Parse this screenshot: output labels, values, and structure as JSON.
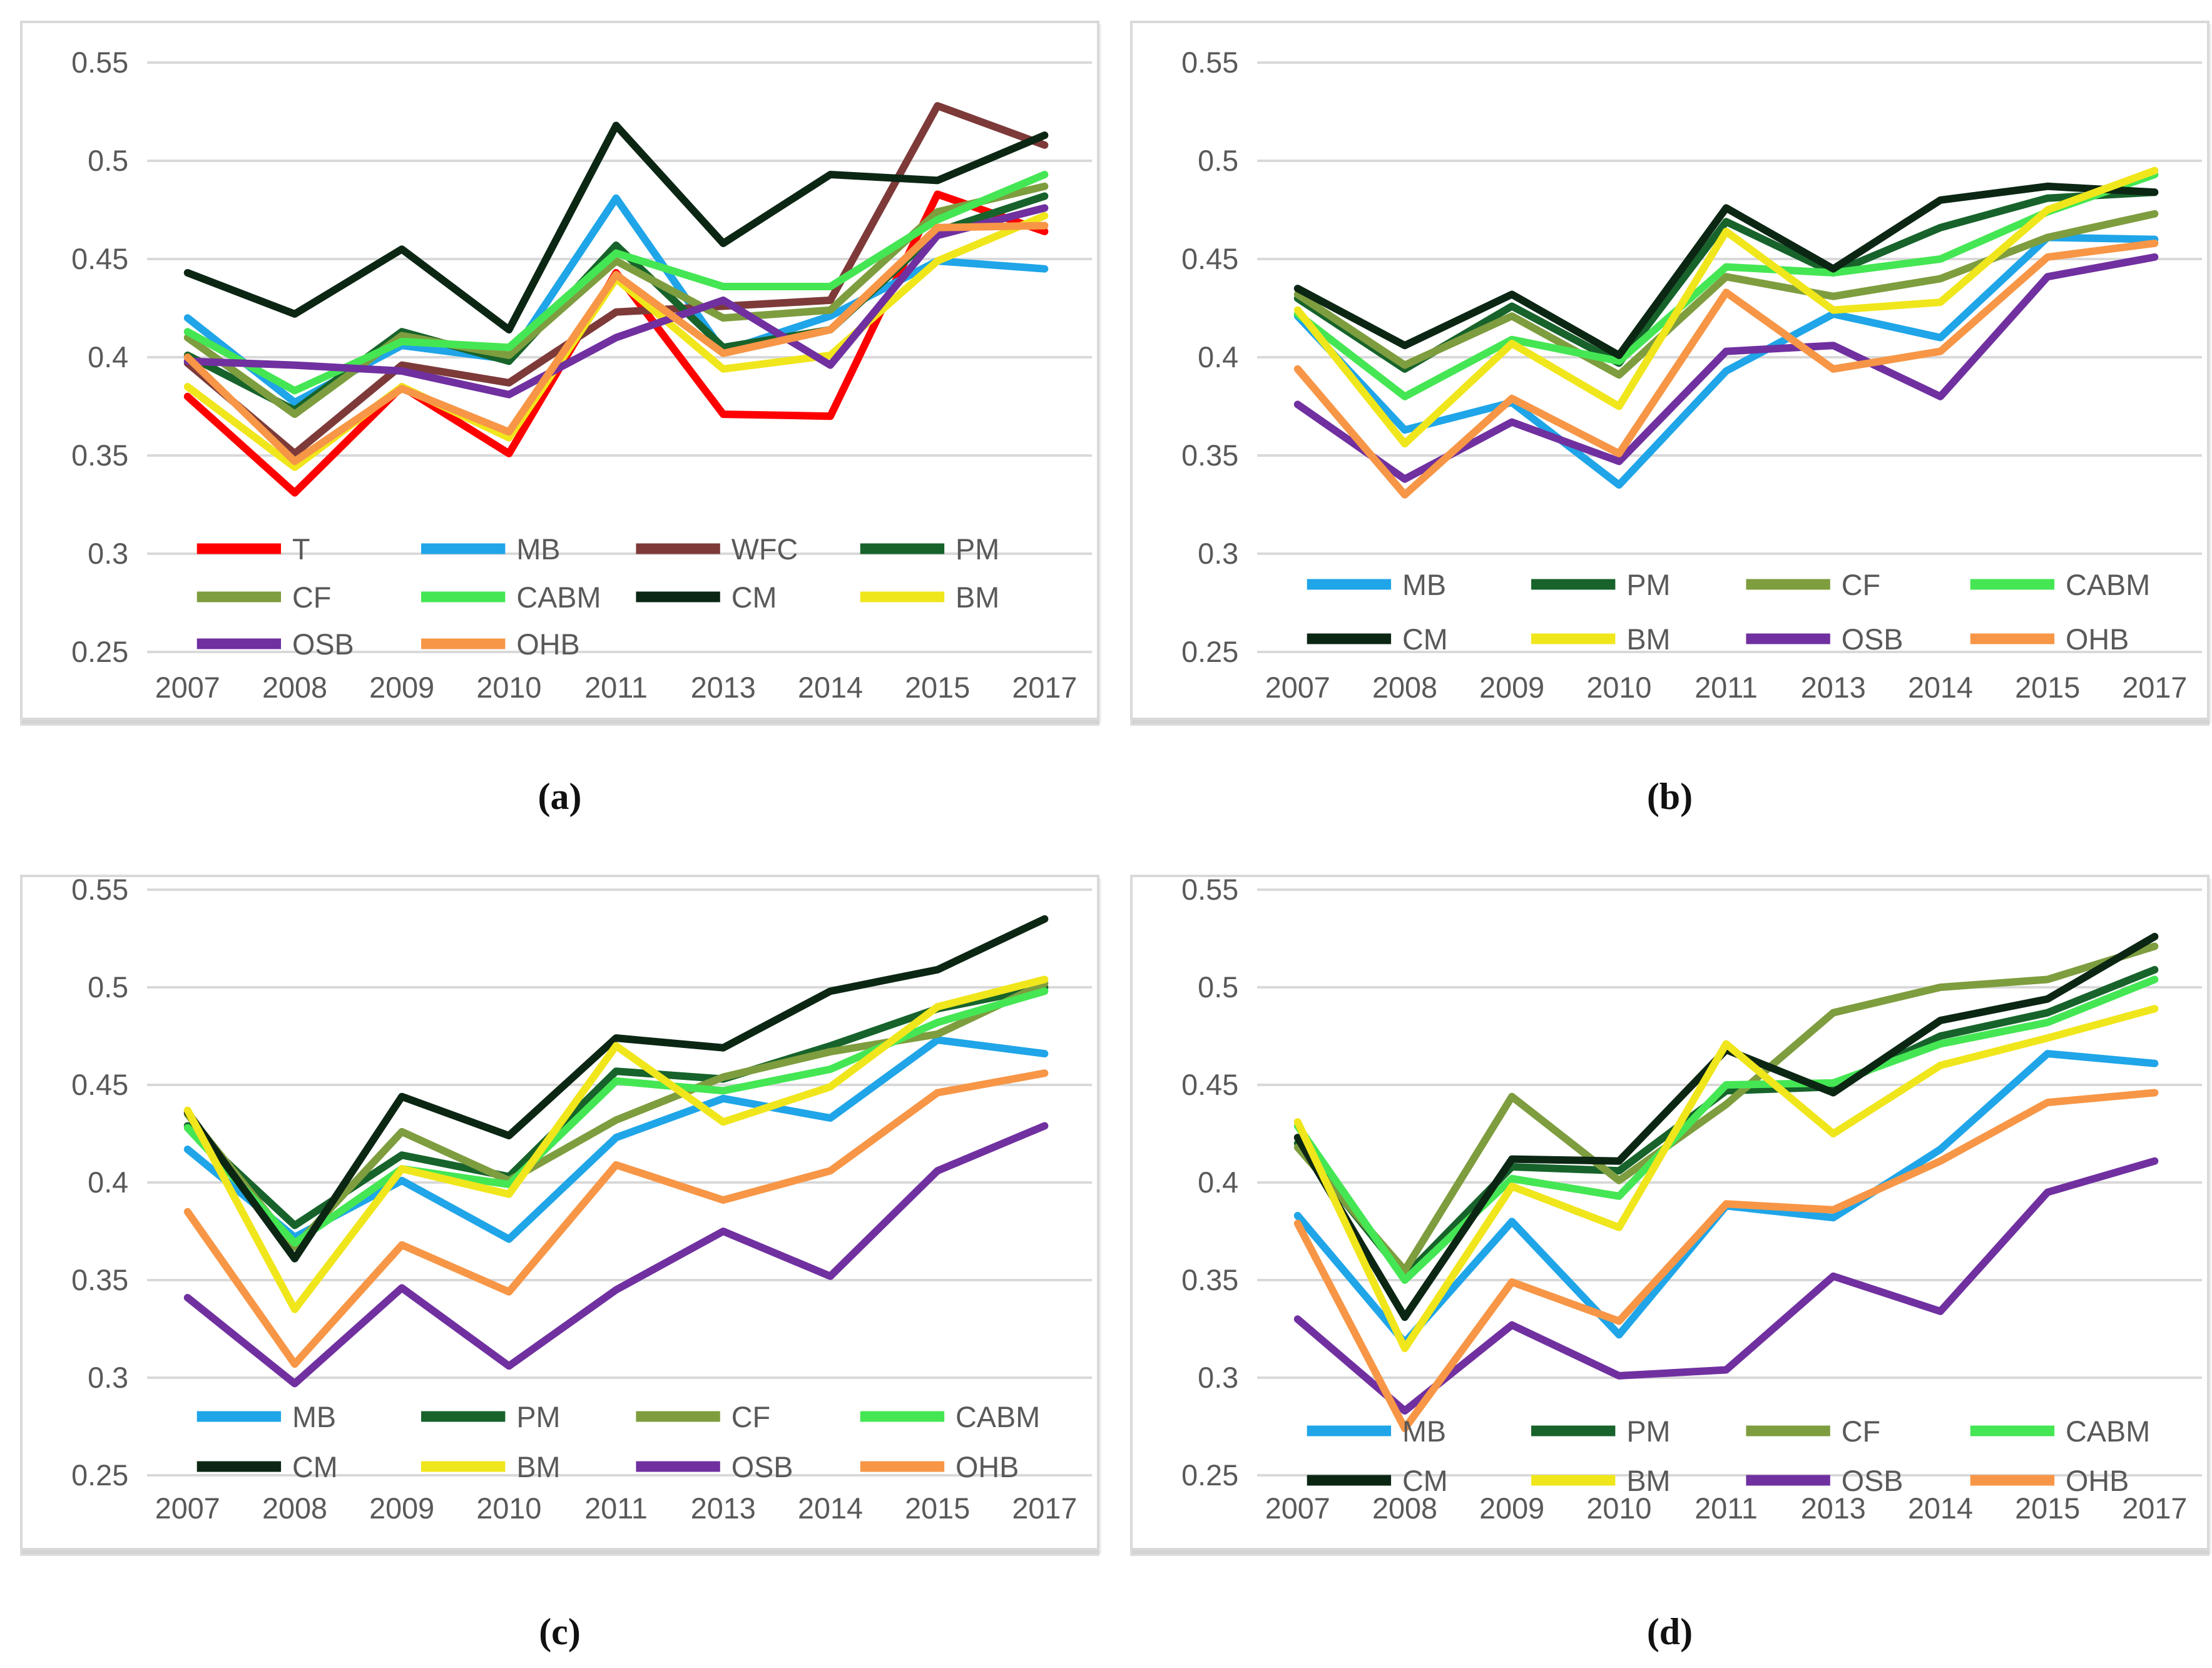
{
  "figure": {
    "background": "#ffffff",
    "grid_color": "#d9d9d9",
    "tick_color": "#595959",
    "captions": [
      "(a)",
      "(b)",
      "(c)",
      "(d)"
    ]
  },
  "chart_data": [
    {
      "type": "line",
      "caption": "(a)",
      "x": [
        "2007",
        "2008",
        "2009",
        "2010",
        "2011",
        "2013",
        "2014",
        "2015",
        "2017"
      ],
      "ylim": [
        0.25,
        0.55
      ],
      "yticks": [
        "0.55",
        "0.5",
        "0.45",
        "0.4",
        "0.35",
        "0.3",
        "0.25"
      ],
      "grid": true,
      "legend_position": "bottom-inside",
      "legend_rows_y": [
        840,
        917,
        992
      ],
      "series": [
        {
          "name": "T",
          "color": "#fe0000",
          "values": [
            0.38,
            0.331,
            0.385,
            0.351,
            0.443,
            0.371,
            0.37,
            0.483,
            0.464
          ]
        },
        {
          "name": "MB",
          "color": "#1fa5e8",
          "values": [
            0.42,
            0.377,
            0.406,
            0.399,
            0.481,
            0.403,
            0.421,
            0.449,
            0.445
          ]
        },
        {
          "name": "WFC",
          "color": "#7d3a39",
          "values": [
            0.397,
            0.351,
            0.396,
            0.387,
            0.423,
            0.426,
            0.429,
            0.528,
            0.508
          ]
        },
        {
          "name": "PM",
          "color": "#17632b",
          "values": [
            0.401,
            0.373,
            0.413,
            0.398,
            0.457,
            0.405,
            0.414,
            0.464,
            0.482
          ]
        },
        {
          "name": "CF",
          "color": "#7e9d3f",
          "values": [
            0.41,
            0.371,
            0.411,
            0.401,
            0.449,
            0.42,
            0.424,
            0.474,
            0.487
          ]
        },
        {
          "name": "CABM",
          "color": "#45e654",
          "values": [
            0.413,
            0.383,
            0.408,
            0.405,
            0.453,
            0.436,
            0.436,
            0.47,
            0.493
          ]
        },
        {
          "name": "CM",
          "color": "#0c2614",
          "values": [
            0.443,
            0.422,
            0.455,
            0.414,
            0.518,
            0.458,
            0.493,
            0.49,
            0.513
          ]
        },
        {
          "name": "BM",
          "color": "#f0e61c",
          "values": [
            0.385,
            0.344,
            0.385,
            0.359,
            0.44,
            0.394,
            0.401,
            0.449,
            0.472
          ]
        },
        {
          "name": "OSB",
          "color": "#7030a0",
          "values": [
            0.398,
            0.396,
            0.393,
            0.381,
            0.41,
            0.429,
            0.396,
            0.462,
            0.476
          ]
        },
        {
          "name": "OHB",
          "color": "#f79646",
          "values": [
            0.4,
            0.347,
            0.384,
            0.362,
            0.442,
            0.402,
            0.414,
            0.466,
            0.467
          ]
        }
      ]
    },
    {
      "type": "line",
      "caption": "(b)",
      "x": [
        "2007",
        "2008",
        "2009",
        "2010",
        "2011",
        "2013",
        "2014",
        "2015",
        "2017"
      ],
      "ylim": [
        0.25,
        0.55
      ],
      "yticks": [
        "0.55",
        "0.5",
        "0.45",
        "0.4",
        "0.35",
        "0.3",
        "0.25"
      ],
      "grid": true,
      "legend_position": "bottom-inside",
      "legend_rows_y": [
        897,
        984
      ],
      "series": [
        {
          "name": "MB",
          "color": "#1fa5e8",
          "values": [
            0.421,
            0.363,
            0.377,
            0.335,
            0.393,
            0.422,
            0.41,
            0.461,
            0.46
          ]
        },
        {
          "name": "PM",
          "color": "#17632b",
          "values": [
            0.43,
            0.394,
            0.426,
            0.397,
            0.469,
            0.443,
            0.466,
            0.481,
            0.484
          ]
        },
        {
          "name": "CF",
          "color": "#7e9d3f",
          "values": [
            0.432,
            0.396,
            0.421,
            0.391,
            0.441,
            0.431,
            0.44,
            0.461,
            0.473
          ]
        },
        {
          "name": "CABM",
          "color": "#45e654",
          "values": [
            0.422,
            0.38,
            0.409,
            0.398,
            0.446,
            0.443,
            0.45,
            0.474,
            0.493
          ]
        },
        {
          "name": "CM",
          "color": "#0c2614",
          "values": [
            0.435,
            0.406,
            0.432,
            0.401,
            0.476,
            0.445,
            0.48,
            0.487,
            0.484
          ]
        },
        {
          "name": "BM",
          "color": "#f0e61c",
          "values": [
            0.424,
            0.356,
            0.407,
            0.375,
            0.464,
            0.424,
            0.428,
            0.475,
            0.495
          ]
        },
        {
          "name": "OSB",
          "color": "#7030a0",
          "values": [
            0.376,
            0.338,
            0.367,
            0.347,
            0.403,
            0.406,
            0.38,
            0.441,
            0.451
          ]
        },
        {
          "name": "OHB",
          "color": "#f79646",
          "values": [
            0.394,
            0.33,
            0.379,
            0.351,
            0.433,
            0.394,
            0.403,
            0.451,
            0.458
          ]
        }
      ]
    },
    {
      "type": "line",
      "caption": "(c)",
      "x": [
        "2007",
        "2008",
        "2009",
        "2010",
        "2011",
        "2013",
        "2014",
        "2015",
        "2017"
      ],
      "ylim": [
        0.25,
        0.55
      ],
      "yticks": [
        "0.55",
        "0.5",
        "0.45",
        "0.4",
        "0.35",
        "0.3",
        "0.25"
      ],
      "grid": true,
      "legend_position": "bottom-inside",
      "legend_rows_y": [
        862,
        942
      ],
      "series": [
        {
          "name": "MB",
          "color": "#1fa5e8",
          "values": [
            0.417,
            0.372,
            0.401,
            0.371,
            0.423,
            0.443,
            0.433,
            0.473,
            0.466
          ]
        },
        {
          "name": "PM",
          "color": "#17632b",
          "values": [
            0.429,
            0.378,
            0.414,
            0.403,
            0.457,
            0.453,
            0.47,
            0.489,
            0.5
          ]
        },
        {
          "name": "CF",
          "color": "#7e9d3f",
          "values": [
            0.435,
            0.367,
            0.426,
            0.401,
            0.432,
            0.454,
            0.467,
            0.476,
            0.502
          ]
        },
        {
          "name": "CABM",
          "color": "#45e654",
          "values": [
            0.428,
            0.369,
            0.407,
            0.399,
            0.452,
            0.447,
            0.458,
            0.482,
            0.498
          ]
        },
        {
          "name": "CM",
          "color": "#0c2614",
          "values": [
            0.436,
            0.361,
            0.444,
            0.424,
            0.474,
            0.469,
            0.498,
            0.509,
            0.535
          ]
        },
        {
          "name": "BM",
          "color": "#f0e61c",
          "values": [
            0.437,
            0.335,
            0.407,
            0.394,
            0.47,
            0.431,
            0.449,
            0.49,
            0.504
          ]
        },
        {
          "name": "OSB",
          "color": "#7030a0",
          "values": [
            0.341,
            0.297,
            0.346,
            0.306,
            0.345,
            0.375,
            0.352,
            0.406,
            0.429
          ]
        },
        {
          "name": "OHB",
          "color": "#f79646",
          "values": [
            0.385,
            0.307,
            0.368,
            0.344,
            0.409,
            0.391,
            0.406,
            0.446,
            0.456
          ]
        }
      ]
    },
    {
      "type": "line",
      "caption": "(d)",
      "x": [
        "2007",
        "2008",
        "2009",
        "2010",
        "2011",
        "2013",
        "2014",
        "2015",
        "2017"
      ],
      "ylim": [
        0.25,
        0.55
      ],
      "yticks": [
        "0.55",
        "0.5",
        "0.45",
        "0.4",
        "0.35",
        "0.3",
        "0.25"
      ],
      "grid": true,
      "legend_position": "bottom-inside",
      "legend_rows_y": [
        885,
        964
      ],
      "series": [
        {
          "name": "MB",
          "color": "#1fa5e8",
          "values": [
            0.383,
            0.318,
            0.38,
            0.322,
            0.388,
            0.382,
            0.417,
            0.466,
            0.461
          ]
        },
        {
          "name": "PM",
          "color": "#17632b",
          "values": [
            0.42,
            0.352,
            0.408,
            0.406,
            0.447,
            0.449,
            0.475,
            0.487,
            0.509
          ]
        },
        {
          "name": "CF",
          "color": "#7e9d3f",
          "values": [
            0.418,
            0.355,
            0.444,
            0.401,
            0.44,
            0.487,
            0.5,
            0.504,
            0.521
          ]
        },
        {
          "name": "CABM",
          "color": "#45e654",
          "values": [
            0.429,
            0.35,
            0.402,
            0.393,
            0.45,
            0.451,
            0.471,
            0.482,
            0.504
          ]
        },
        {
          "name": "CM",
          "color": "#0c2614",
          "values": [
            0.423,
            0.331,
            0.412,
            0.411,
            0.468,
            0.446,
            0.483,
            0.494,
            0.526
          ]
        },
        {
          "name": "BM",
          "color": "#f0e61c",
          "values": [
            0.431,
            0.315,
            0.398,
            0.377,
            0.471,
            0.425,
            0.46,
            0.474,
            0.489
          ]
        },
        {
          "name": "OSB",
          "color": "#7030a0",
          "values": [
            0.33,
            0.283,
            0.327,
            0.301,
            0.304,
            0.352,
            0.334,
            0.395,
            0.411
          ]
        },
        {
          "name": "OHB",
          "color": "#f79646",
          "values": [
            0.379,
            0.274,
            0.349,
            0.329,
            0.389,
            0.386,
            0.411,
            0.441,
            0.446
          ]
        }
      ]
    }
  ]
}
